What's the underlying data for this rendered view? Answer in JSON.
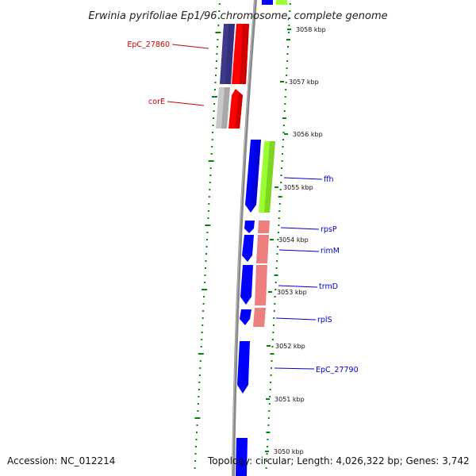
{
  "title": "Erwinia pyrifoliae Ep1/96 chromosome, complete genome",
  "ticks": [
    {
      "label": "3058 kbp",
      "pos_kbp": 3058
    },
    {
      "label": "3057 kbp",
      "pos_kbp": 3057
    },
    {
      "label": "3056 kbp",
      "pos_kbp": 3056
    },
    {
      "label": "3055 kbp",
      "pos_kbp": 3055
    },
    {
      "label": "3054 kbp",
      "pos_kbp": 3054
    },
    {
      "label": "3053 kbp",
      "pos_kbp": 3053
    },
    {
      "label": "3052 kbp",
      "pos_kbp": 3052
    },
    {
      "label": "3051 kbp",
      "pos_kbp": 3051
    },
    {
      "label": "3050 kbp",
      "pos_kbp": 3050
    }
  ],
  "gene_labels": [
    {
      "text": "EpC_27860",
      "color": "#cc0000"
    },
    {
      "text": "corE",
      "color": "#cc0000"
    },
    {
      "text": "ffh",
      "color": "#0000cc"
    },
    {
      "text": "rpsP",
      "color": "#0000cc"
    },
    {
      "text": "rimM",
      "color": "#0000cc"
    },
    {
      "text": "trmD",
      "color": "#0000cc"
    },
    {
      "text": "rplS",
      "color": "#0000cc"
    },
    {
      "text": "EpC_27790",
      "color": "#0000cc"
    }
  ],
  "feature_colors": {
    "cds_reverse": "#0000ff",
    "cds_forward": "#ff0000",
    "trna_like": "#9aff33",
    "rrna_like": "#ee7f7f",
    "dark_block": "#3e3a8a",
    "grey_block": "#c8c8c8",
    "backbone": "#888888",
    "ticks": "#008800"
  },
  "footer": {
    "accession": "Accession: NC_012214",
    "topology": "Topology: circular; Length: 4,026,322 bp; Genes: 3,742"
  }
}
